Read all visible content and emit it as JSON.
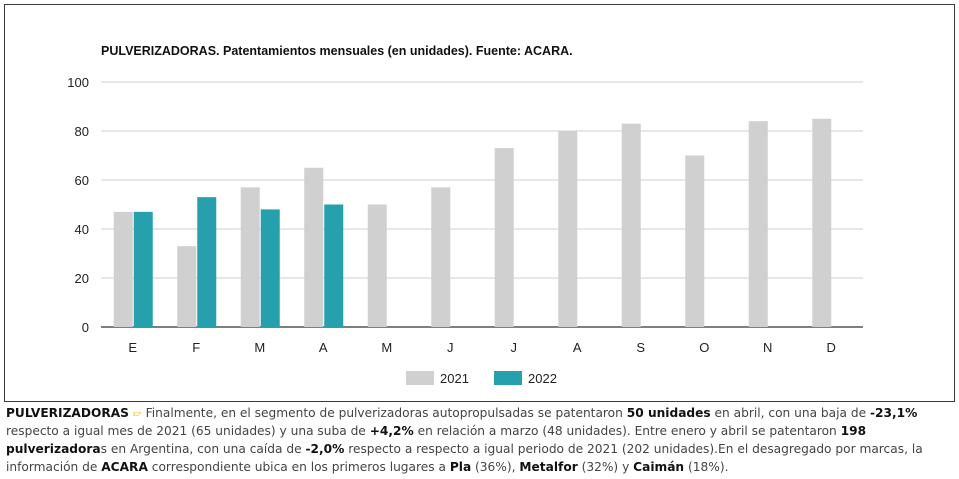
{
  "chart_data": {
    "type": "bar",
    "title": "PULVERIZADORAS. Patentamientos mensuales (en unidades). Fuente: ACARA.",
    "categories": [
      "E",
      "F",
      "M",
      "A",
      "M",
      "J",
      "J",
      "A",
      "S",
      "O",
      "N",
      "D"
    ],
    "series": [
      {
        "name": "2021",
        "values": [
          47,
          33,
          57,
          65,
          50,
          57,
          73,
          80,
          83,
          70,
          84,
          85
        ],
        "color": "#d0d0d0"
      },
      {
        "name": "2022",
        "values": [
          47,
          53,
          48,
          50,
          null,
          null,
          null,
          null,
          null,
          null,
          null,
          null
        ],
        "color": "#27a0ae"
      }
    ],
    "ylim": [
      0,
      100
    ],
    "yticks": [
      0,
      20,
      40,
      60,
      80,
      100
    ],
    "grid": true,
    "legend": "bottom"
  },
  "caption": {
    "lead": "PULVERIZADORAS",
    "icon": "pointing-hand-icon",
    "t1": " Finalmente, en el segmento de pulverizadoras autopropulsadas se patentaron ",
    "b1": "50 unidades",
    "t2": " en abril, con una baja de ",
    "b2": "-23,1%",
    "t3": " respecto a igual mes de 2021 (65 unidades) y una suba de ",
    "b3": "+4,2%",
    "t4": " en relación a marzo (48 unidades). Entre enero y abril se patentaron ",
    "b4": "198 pulverizadora",
    "t5": "s en Argentina, con una caída de ",
    "b5": "-2,0%",
    "t6": " respecto a respecto a igual periodo de 2021 (202 unidades).En el desagregado por marcas, la información de ",
    "b6": "ACARA",
    "t7": " correspondiente ubica en los primeros lugares a ",
    "b7": "Pla",
    "t8": " (36%), ",
    "b8": "Metalfor",
    "t9": " (32%) y ",
    "b9": "Caimán",
    "t10": " (18%)."
  }
}
